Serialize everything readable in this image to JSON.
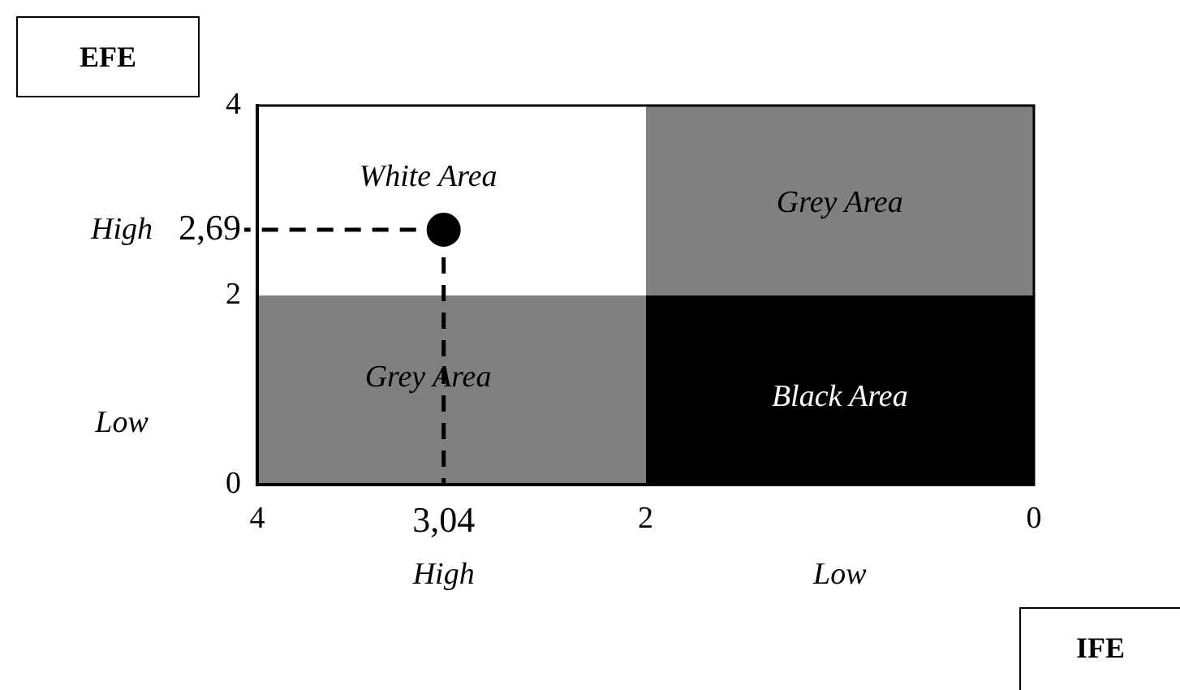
{
  "chart_data": {
    "type": "scatter",
    "xlabel": "IFE",
    "ylabel": "EFE",
    "x": [
      3.04
    ],
    "series": [
      {
        "color": "#000000",
        "values": [
          2.69
        ]
      }
    ],
    "xlim": [
      4,
      0
    ],
    "xticks": [
      4,
      {
        "value": 3.04,
        "label": "3,04"
      },
      2,
      0
    ],
    "ylim": [
      0,
      4
    ],
    "yticks": [
      0,
      2,
      {
        "value": 2.69,
        "label": "2,69"
      },
      4
    ],
    "marker": "circle",
    "grid": false,
    "legend": false,
    "annotations": [
      "White Area",
      "Grey Area",
      "Grey Area",
      "Black Area",
      "High",
      "Low",
      "High",
      "Low"
    ]
  }
}
